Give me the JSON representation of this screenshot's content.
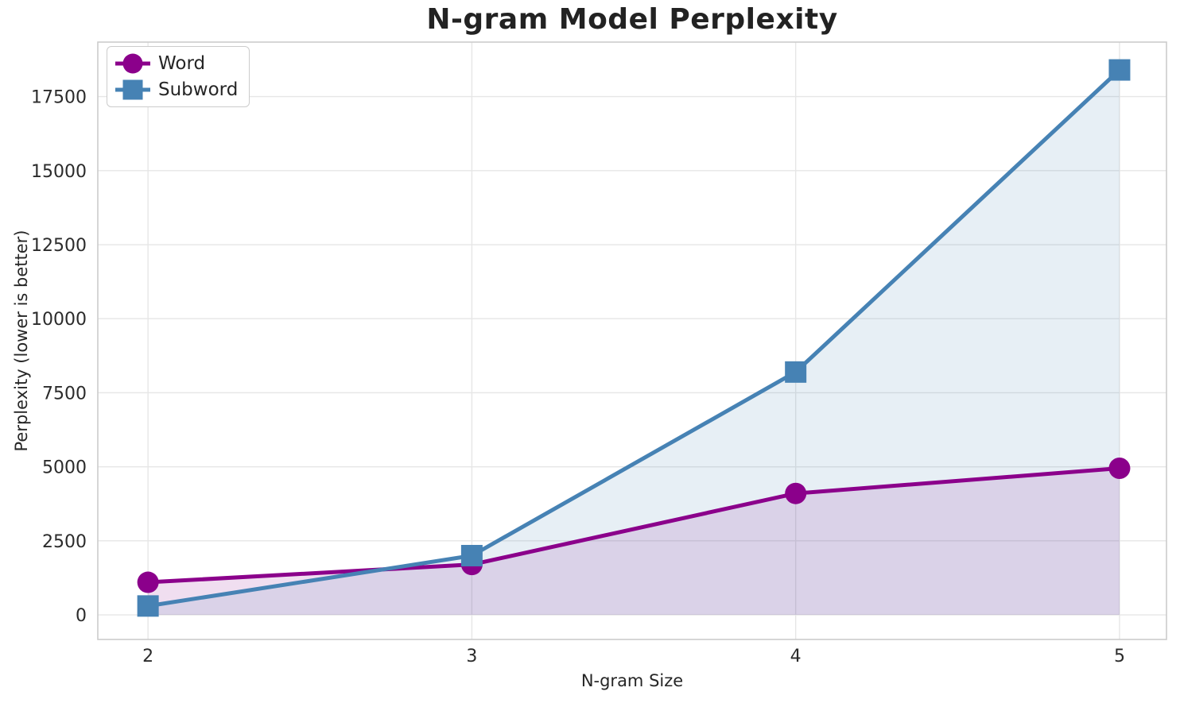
{
  "chart_data": {
    "type": "line",
    "title": "N-gram Model Perplexity",
    "xlabel": "N-gram Size",
    "ylabel": "Perplexity (lower is better)",
    "x": [
      2,
      3,
      4,
      5
    ],
    "series": [
      {
        "name": "Word",
        "marker": "circle",
        "color": "#8B008B",
        "values": [
          1100,
          1700,
          4100,
          4950
        ]
      },
      {
        "name": "Subword",
        "marker": "square",
        "color": "#4682B4",
        "values": [
          300,
          2000,
          8200,
          18400
        ]
      }
    ],
    "xtick_labels": [
      "2",
      "3",
      "4",
      "5"
    ],
    "xtick_values": [
      2,
      3,
      4,
      5
    ],
    "ytick_labels": [
      "0",
      "2500",
      "5000",
      "7500",
      "10000",
      "12500",
      "15000",
      "17500"
    ],
    "ytick_values": [
      0,
      2500,
      5000,
      7500,
      10000,
      12500,
      15000,
      17500
    ],
    "xlim": [
      1.845,
      5.145
    ],
    "ylim": [
      -830,
      19340
    ],
    "grid": true,
    "legend_position": "upper left",
    "area_fill": true,
    "fill_baseline": 0,
    "fill_opacity": 0.13,
    "grid_color": "#e6e6e6",
    "spine_color": "#cccccc",
    "tick_color": "#2b2b2b"
  }
}
